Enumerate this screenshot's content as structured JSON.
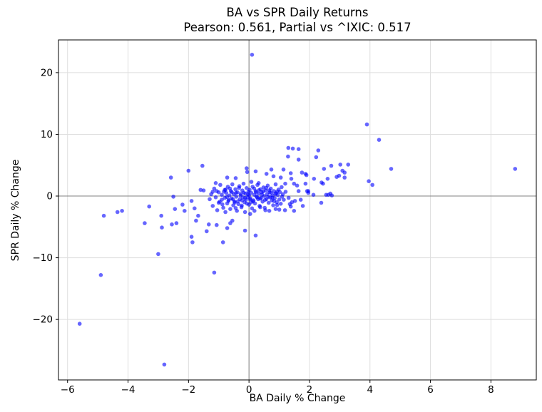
{
  "chart_data": {
    "type": "scatter",
    "title": "BA vs SPR Daily Returns",
    "subtitle": "Pearson: 0.561, Partial vs ^IXIC: 0.517",
    "xlabel": "BA Daily % Change",
    "ylabel": "SPR Daily % Change",
    "xlim": [
      -6.3,
      9.5
    ],
    "ylim": [
      -29.8,
      25.3
    ],
    "xticks": [
      -6,
      -4,
      -2,
      0,
      2,
      4,
      6,
      8
    ],
    "yticks": [
      -20,
      -10,
      0,
      10,
      20
    ],
    "grid": true,
    "legend": "none",
    "grid_color": "#dedede",
    "zero_line_color": "#808080",
    "spine_color": "#000000",
    "marker_color": "#0000ff",
    "marker_opacity": 0.6,
    "marker_radius": 2.8,
    "points": [
      [
        0.1,
        22.9
      ],
      [
        -5.6,
        -20.7
      ],
      [
        -4.9,
        -12.8
      ],
      [
        -2.8,
        -27.3
      ],
      [
        -1.15,
        -12.4
      ],
      [
        -3.0,
        -9.4
      ],
      [
        8.8,
        4.4
      ],
      [
        3.9,
        11.6
      ],
      [
        4.3,
        9.1
      ],
      [
        4.7,
        4.4
      ],
      [
        3.96,
        2.4
      ],
      [
        4.08,
        1.8
      ],
      [
        -4.8,
        -3.2
      ],
      [
        -4.35,
        -2.6
      ],
      [
        -4.2,
        -2.4
      ],
      [
        -3.3,
        -1.7
      ],
      [
        -3.45,
        -4.4
      ],
      [
        -2.9,
        -3.2
      ],
      [
        -2.88,
        -5.1
      ],
      [
        -2.5,
        -0.1
      ],
      [
        -2.45,
        -2.1
      ],
      [
        -2.55,
        -4.6
      ],
      [
        -2.4,
        -4.4
      ],
      [
        -2.2,
        -1.4
      ],
      [
        -2.13,
        -2.4
      ],
      [
        -1.9,
        -0.8
      ],
      [
        -1.8,
        -2.0
      ],
      [
        -1.68,
        -3.2
      ],
      [
        -1.75,
        -4.0
      ],
      [
        -1.9,
        -6.6
      ],
      [
        -1.87,
        -7.5
      ],
      [
        -2.58,
        3.0
      ],
      [
        -2.0,
        4.1
      ],
      [
        -1.54,
        4.9
      ],
      [
        -1.6,
        1.0
      ],
      [
        -1.5,
        0.9
      ],
      [
        -1.2,
        0.7
      ],
      [
        -1.07,
        0.8
      ],
      [
        -1.1,
        2.1
      ],
      [
        -0.72,
        3.0
      ],
      [
        -0.44,
        2.9
      ],
      [
        -1.33,
        -4.6
      ],
      [
        -1.07,
        -4.7
      ],
      [
        -0.62,
        -4.4
      ],
      [
        -0.55,
        -4.0
      ],
      [
        -1.4,
        -5.7
      ],
      [
        -0.72,
        -5.2
      ],
      [
        -0.13,
        -5.6
      ],
      [
        0.22,
        -6.4
      ],
      [
        -0.86,
        -7.5
      ],
      [
        -0.13,
        -2.6
      ],
      [
        0.04,
        -2.9
      ],
      [
        0.18,
        -2.4
      ],
      [
        0.37,
        -1.8
      ],
      [
        0.67,
        -2.4
      ],
      [
        0.88,
        -2.1
      ],
      [
        1.0,
        -2.2
      ],
      [
        1.19,
        -2.3
      ],
      [
        1.49,
        -2.4
      ],
      [
        1.35,
        -1.3
      ],
      [
        1.52,
        -0.8
      ],
      [
        1.71,
        -0.6
      ],
      [
        1.78,
        -1.6
      ],
      [
        1.42,
        -1.0
      ],
      [
        1.38,
        -1.7
      ],
      [
        1.31,
        -0.3
      ],
      [
        1.09,
        -0.1
      ],
      [
        1.3,
        7.8
      ],
      [
        1.45,
        7.7
      ],
      [
        1.64,
        7.6
      ],
      [
        1.29,
        6.4
      ],
      [
        1.64,
        5.9
      ],
      [
        -0.08,
        4.5
      ],
      [
        -0.06,
        3.9
      ],
      [
        0.22,
        4.0
      ],
      [
        0.58,
        3.6
      ],
      [
        0.74,
        4.3
      ],
      [
        0.81,
        3.2
      ],
      [
        1.14,
        4.3
      ],
      [
        1.05,
        3.0
      ],
      [
        1.38,
        3.7
      ],
      [
        1.4,
        2.8
      ],
      [
        1.75,
        3.8
      ],
      [
        1.87,
        3.6
      ],
      [
        0.08,
        2.3
      ],
      [
        0.32,
        2.1
      ],
      [
        2.29,
        7.4
      ],
      [
        2.22,
        6.3
      ],
      [
        2.48,
        4.4
      ],
      [
        2.72,
        4.9
      ],
      [
        3.02,
        5.1
      ],
      [
        3.28,
        5.1
      ],
      [
        3.09,
        4.1
      ],
      [
        3.16,
        3.8
      ],
      [
        2.9,
        3.1
      ],
      [
        2.98,
        3.3
      ],
      [
        3.16,
        3.0
      ],
      [
        2.15,
        2.8
      ],
      [
        2.4,
        2.2
      ],
      [
        2.45,
        2.0
      ],
      [
        2.6,
        2.8
      ],
      [
        1.9,
        3.4
      ],
      [
        1.96,
        0.8
      ],
      [
        2.13,
        0.2
      ],
      [
        2.55,
        0.2
      ],
      [
        2.62,
        0.2
      ],
      [
        2.74,
        0.1
      ],
      [
        2.69,
        0.4
      ],
      [
        2.39,
        -1.1
      ],
      [
        1.2,
        2.0
      ],
      [
        1.49,
        2.0
      ],
      [
        1.59,
        1.7
      ],
      [
        1.87,
        2.0
      ],
      [
        1.21,
        0.7
      ],
      [
        1.64,
        0.8
      ],
      [
        1.92,
        0.8
      ],
      [
        1.96,
        0.5
      ],
      [
        -1.3,
        -0.5
      ],
      [
        -1.25,
        0.3
      ],
      [
        -1.2,
        -1.6
      ],
      [
        -1.15,
        1.2
      ],
      [
        -1.1,
        -0.2
      ],
      [
        -1.05,
        -2.3
      ],
      [
        -1.0,
        0.6
      ],
      [
        -1.0,
        -1.1
      ],
      [
        -0.95,
        1.8
      ],
      [
        -0.9,
        -0.6
      ],
      [
        -0.9,
        0.2
      ],
      [
        -0.85,
        -1.9
      ],
      [
        -0.8,
        1.0
      ],
      [
        -0.8,
        -0.3
      ],
      [
        -0.78,
        -2.6
      ],
      [
        -0.75,
        0.5
      ],
      [
        -0.72,
        -1.2
      ],
      [
        -0.7,
        1.5
      ],
      [
        -0.68,
        -0.8
      ],
      [
        -0.65,
        0.1
      ],
      [
        -0.62,
        -2.1
      ],
      [
        -0.6,
        0.8
      ],
      [
        -0.58,
        -0.4
      ],
      [
        -0.55,
        1.9
      ],
      [
        -0.52,
        -1.5
      ],
      [
        -0.5,
        0.3
      ],
      [
        -0.48,
        -0.9
      ],
      [
        -0.45,
        1.1
      ],
      [
        -0.42,
        -0.1
      ],
      [
        -0.4,
        -2.4
      ],
      [
        -0.38,
        0.6
      ],
      [
        -0.35,
        -1.3
      ],
      [
        -0.32,
        1.6
      ],
      [
        -0.3,
        -0.5
      ],
      [
        -0.28,
        0.1
      ],
      [
        -0.25,
        -1.8
      ],
      [
        -0.22,
        0.9
      ],
      [
        -0.2,
        -0.2
      ],
      [
        -0.18,
        2.0
      ],
      [
        -0.15,
        -1.0
      ],
      [
        -0.12,
        0.4
      ],
      [
        -0.1,
        -0.6
      ],
      [
        -0.08,
        1.3
      ],
      [
        -0.05,
        -0.15
      ],
      [
        -0.02,
        0.7
      ],
      [
        0.0,
        -1.4
      ],
      [
        0.0,
        0.1
      ],
      [
        0.02,
        1.0
      ],
      [
        0.05,
        -0.4
      ],
      [
        0.08,
        0.5
      ],
      [
        0.1,
        -2.0
      ],
      [
        0.12,
        1.5
      ],
      [
        0.15,
        -0.7
      ],
      [
        0.18,
        0.2
      ],
      [
        0.2,
        -1.2
      ],
      [
        0.22,
        0.8
      ],
      [
        0.25,
        -0.1
      ],
      [
        0.28,
        1.8
      ],
      [
        0.3,
        -0.5
      ],
      [
        0.32,
        0.4
      ],
      [
        0.35,
        -1.6
      ],
      [
        0.38,
        1.1
      ],
      [
        0.4,
        -0.3
      ],
      [
        0.42,
        0.6
      ],
      [
        0.45,
        -0.9
      ],
      [
        0.48,
        1.4
      ],
      [
        0.5,
        0.0
      ],
      [
        0.52,
        -1.9
      ],
      [
        0.55,
        0.9
      ],
      [
        0.58,
        -0.5
      ],
      [
        0.6,
        0.3
      ],
      [
        0.62,
        1.7
      ],
      [
        0.65,
        -1.1
      ],
      [
        0.68,
        0.6
      ],
      [
        0.7,
        -0.2
      ],
      [
        0.72,
        1.2
      ],
      [
        0.75,
        -0.7
      ],
      [
        0.78,
        0.1
      ],
      [
        0.8,
        -1.5
      ],
      [
        0.82,
        0.8
      ],
      [
        0.85,
        -0.35
      ],
      [
        0.88,
        1.9
      ],
      [
        0.9,
        0.45
      ],
      [
        0.92,
        -1.0
      ],
      [
        0.95,
        0.15
      ],
      [
        0.98,
        1.05
      ],
      [
        1.0,
        -0.55
      ],
      [
        1.02,
        0.65
      ],
      [
        1.05,
        -1.25
      ],
      [
        1.08,
        1.45
      ],
      [
        0.33,
        0.95
      ],
      [
        0.13,
        -0.85
      ],
      [
        -0.23,
        -0.72
      ],
      [
        0.43,
        0.22
      ],
      [
        -0.43,
        0.52
      ],
      [
        0.53,
        -0.62
      ],
      [
        -0.33,
        1.32
      ],
      [
        0.23,
        0.62
      ],
      [
        -0.13,
        -0.32
      ],
      [
        0.63,
        -0.12
      ],
      [
        -0.53,
        -0.52
      ],
      [
        0.73,
        0.52
      ],
      [
        -0.63,
        1.22
      ],
      [
        0.83,
        -0.82
      ],
      [
        -0.03,
        0.32
      ],
      [
        0.93,
        0.75
      ],
      [
        -0.73,
        -0.15
      ],
      [
        0.03,
        -0.52
      ],
      [
        -0.83,
        0.72
      ],
      [
        0.17,
        1.22
      ],
      [
        -0.27,
        0.35
      ],
      [
        0.37,
        -0.42
      ],
      [
        -0.47,
        -1.05
      ],
      [
        0.57,
        1.32
      ],
      [
        -0.57,
        0.62
      ],
      [
        0.77,
        -0.25
      ],
      [
        -0.67,
        -0.62
      ],
      [
        0.87,
        0.35
      ],
      [
        -0.77,
        1.05
      ],
      [
        0.07,
        -1.02
      ],
      [
        -0.17,
        0.55
      ],
      [
        0.27,
        -0.22
      ],
      [
        -0.37,
        -0.85
      ],
      [
        0.47,
        0.75
      ],
      [
        -0.07,
        -1.22
      ],
      [
        0.67,
        0.92
      ],
      [
        -0.97,
        -0.92
      ],
      [
        1.12,
        0.3
      ],
      [
        1.15,
        -0.6
      ],
      [
        -0.88,
        -1.35
      ],
      [
        0.93,
        -1.45
      ],
      [
        -0.44,
        -1.95
      ],
      [
        0.54,
        -2.3
      ],
      [
        -0.24,
        -1.55
      ]
    ]
  }
}
